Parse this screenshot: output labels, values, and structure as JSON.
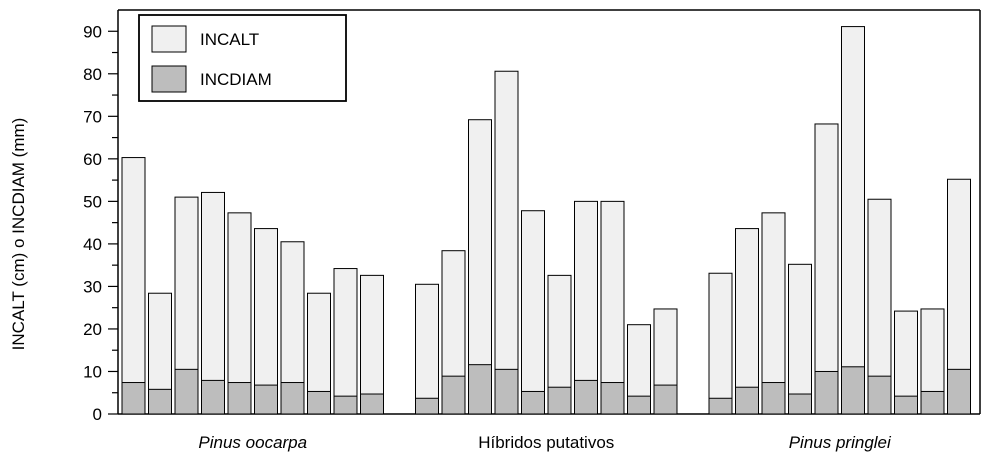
{
  "chart_data": {
    "type": "bar",
    "stacked": false,
    "overlay": true,
    "ylabel": "INCALT (cm) o INCDIAM (mm)",
    "ylim": [
      0,
      95
    ],
    "yticks": [
      0,
      10,
      20,
      30,
      40,
      50,
      60,
      70,
      80,
      90
    ],
    "grid": false,
    "legend_position": "top-left",
    "groups": [
      {
        "label": "Pinus oocarpa",
        "italic": true,
        "bar_count": 10
      },
      {
        "label": "Híbridos putativos",
        "italic": false,
        "bar_count": 10
      },
      {
        "label": "Pinus pringlei",
        "italic": true,
        "bar_count": 10
      }
    ],
    "series": [
      {
        "name": "INCALT",
        "color": "#f0f0f0",
        "values": [
          60.3,
          28.4,
          51.0,
          52.1,
          47.3,
          43.6,
          40.5,
          28.4,
          34.2,
          32.6,
          30.5,
          38.4,
          69.2,
          80.6,
          47.8,
          32.6,
          50.0,
          50.0,
          21.0,
          24.7,
          33.1,
          43.6,
          47.3,
          35.2,
          68.2,
          91.1,
          50.5,
          24.2,
          24.7,
          55.2
        ]
      },
      {
        "name": "INCDIAM",
        "color": "#bdbdbd",
        "values": [
          7.4,
          5.8,
          10.5,
          7.9,
          7.4,
          6.8,
          7.4,
          5.3,
          4.2,
          4.7,
          3.7,
          8.9,
          11.6,
          10.5,
          5.3,
          6.3,
          7.9,
          7.4,
          4.2,
          6.8,
          3.7,
          6.3,
          7.4,
          4.7,
          10.0,
          11.1,
          8.9,
          4.2,
          5.3,
          10.5
        ]
      }
    ]
  }
}
